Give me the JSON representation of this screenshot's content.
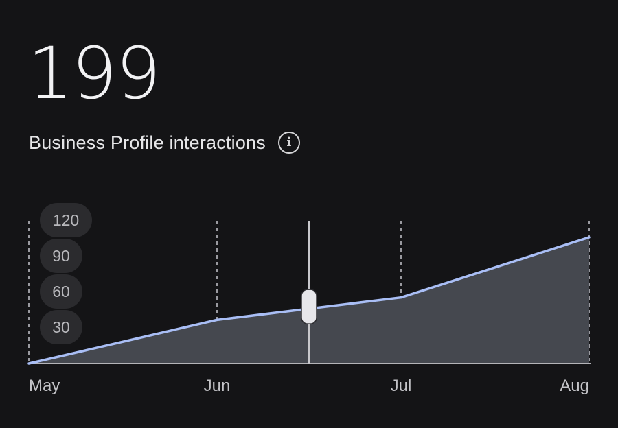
{
  "summary": {
    "total": "199",
    "label": "Business Profile interactions",
    "info_icon": "info-icon"
  },
  "chart_data": {
    "type": "area",
    "title": "",
    "xlabel": "",
    "ylabel": "",
    "categories": [
      "May",
      "Jun",
      "Jul",
      "Aug"
    ],
    "y_ticks": [
      120,
      90,
      60,
      30
    ],
    "ylim": [
      0,
      130
    ],
    "grid": "vertical dashed lines at each month",
    "series": [
      {
        "values": [
          0,
          37,
          56,
          107
        ],
        "color": "#a9bef5",
        "fill": "#45484f"
      }
    ],
    "cursor": {
      "position_between": [
        "Jun",
        "Jul"
      ],
      "value": 47
    }
  },
  "colors": {
    "background": "#141416",
    "line": "#a9bef5",
    "area": "#45484f",
    "tick_pill": "#2b2b2e"
  }
}
